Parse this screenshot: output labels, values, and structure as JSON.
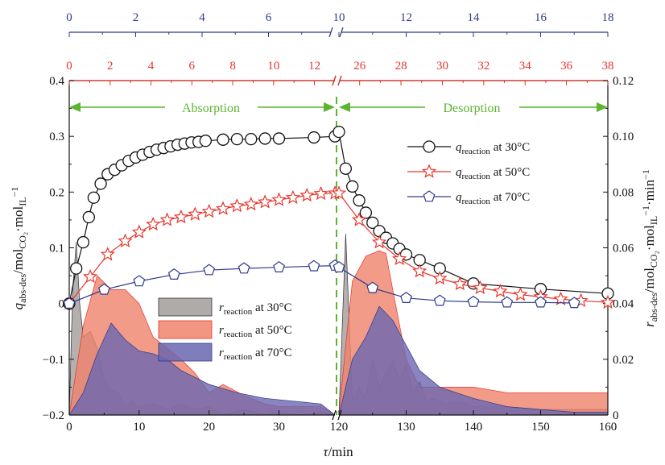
{
  "chart_data": {
    "type": "line",
    "title": "",
    "xlabel": "τ/min",
    "ylabel_left": "q_abs-des/mol_CO2·mol_IL^-1",
    "ylabel_right": "r_abs-des/mol_CO2·mol_IL^-1·min^-1",
    "ylabel_left_parts": {
      "q": "q",
      "sub1": "abs-des",
      "mid1": "/mol",
      "sub2": "CO₂",
      "mid2": "·mol",
      "sub3": "IL",
      "sup": "−1"
    },
    "ylabel_right_parts": {
      "r": "r",
      "sub1": "abs-des",
      "mid1": "/mol",
      "sub2": "CO₂",
      "mid2": "·mol",
      "sub3": "IL",
      "sup1": "−1",
      "mid3": "·min",
      "sup2": "−1"
    },
    "ylim_left": [
      -0.2,
      0.4
    ],
    "ylim_right": [
      0,
      0.12
    ],
    "yticks_left": [
      "−0.2",
      "−0.1",
      "0",
      "0.1",
      "0.2",
      "0.3",
      "0.4"
    ],
    "yticks_right": [
      "0",
      "0.02",
      "0.04",
      "0.06",
      "0.08",
      "0.10",
      "0.12"
    ],
    "x_ticks_bottom": [
      "0",
      "10",
      "20",
      "30",
      "120",
      "130",
      "140",
      "150",
      "160"
    ],
    "x_ticks_top_blue": [
      "0",
      "2",
      "4",
      "6",
      "10",
      "12",
      "14",
      "16",
      "18"
    ],
    "x_ticks_top_red": [
      "0",
      "2",
      "4",
      "6",
      "8",
      "10",
      "12",
      "26",
      "28",
      "30",
      "32",
      "34",
      "36",
      "38"
    ],
    "x_break": "axis break between 38 and 120 min (bottom), 8 and 10 (top blue), 13 and 25 (top red)",
    "phases": [
      {
        "label": "Absorption"
      },
      {
        "label": "Desorption"
      }
    ],
    "grid": false,
    "colors": {
      "black": "#111111",
      "red": "#e8342b",
      "blue": "#2d3a8c",
      "green": "#5cb531",
      "gray_fill": "#a09c9a",
      "red_fill": "#f0826b",
      "blue_fill": "#6a66b0"
    },
    "series": [
      {
        "name": "q_reaction at 30°C",
        "legend": {
          "sym": "q",
          "sub": "reaction",
          "text": " at 30°C"
        },
        "marker": "circle",
        "color": "#111111",
        "axis": "left",
        "x": [
          0,
          1,
          2,
          2.8,
          3.5,
          4.5,
          5.5,
          6.5,
          7.5,
          8.5,
          9.5,
          10.5,
          11.5,
          12.5,
          13.5,
          14.5,
          15.5,
          16.5,
          17.5,
          18.5,
          19.5,
          22,
          24,
          26,
          28,
          30,
          35,
          38,
          120,
          121,
          122,
          123,
          124,
          125,
          126,
          127,
          128,
          129,
          130,
          132,
          135,
          140,
          150,
          160
        ],
        "y": [
          0,
          0.063,
          0.11,
          0.155,
          0.19,
          0.215,
          0.232,
          0.24,
          0.248,
          0.256,
          0.262,
          0.267,
          0.272,
          0.276,
          0.279,
          0.282,
          0.285,
          0.287,
          0.289,
          0.29,
          0.292,
          0.294,
          0.295,
          0.295,
          0.296,
          0.296,
          0.298,
          0.3,
          0.308,
          0.242,
          0.21,
          0.185,
          0.163,
          0.145,
          0.13,
          0.118,
          0.108,
          0.098,
          0.088,
          0.078,
          0.063,
          0.036,
          0.026,
          0.018
        ]
      },
      {
        "name": "q_reaction at 50°C",
        "legend": {
          "sym": "q",
          "sub": "reaction",
          "text": " at 50°C"
        },
        "marker": "star",
        "color": "#e8342b",
        "axis": "left",
        "x": [
          0,
          3,
          5.5,
          8,
          10,
          12,
          14,
          16,
          18,
          20,
          22,
          24,
          26,
          28,
          30,
          32,
          34,
          36,
          38,
          120,
          123,
          126,
          129,
          132,
          135,
          138,
          141,
          144,
          147,
          150,
          153,
          156,
          160
        ],
        "y": [
          0,
          0.048,
          0.088,
          0.112,
          0.128,
          0.142,
          0.15,
          0.155,
          0.16,
          0.165,
          0.17,
          0.175,
          0.178,
          0.182,
          0.186,
          0.19,
          0.194,
          0.197,
          0.198,
          0.198,
          0.15,
          0.11,
          0.08,
          0.058,
          0.045,
          0.035,
          0.028,
          0.022,
          0.016,
          0.012,
          0.008,
          0.005,
          0.002
        ]
      },
      {
        "name": "q_reaction at 70°C",
        "legend": {
          "sym": "q",
          "sub": "reaction",
          "text": " at 70°C"
        },
        "marker": "pentagon",
        "color": "#2d3a8c",
        "axis": "left",
        "x": [
          0,
          5,
          10,
          15,
          20,
          25,
          30,
          35,
          38,
          120,
          125,
          130,
          135,
          140,
          145,
          150,
          155
        ],
        "y": [
          0,
          0.025,
          0.04,
          0.052,
          0.06,
          0.063,
          0.065,
          0.067,
          0.068,
          0.065,
          0.028,
          0.01,
          0.005,
          0.003,
          0.002,
          0.002,
          0.001
        ]
      },
      {
        "name": "r_reaction at 30°C",
        "legend": {
          "sym": "r",
          "sub": "reaction",
          "text": " at 30°C"
        },
        "type": "area",
        "color": "#a09c9a",
        "axis": "right",
        "x": [
          0,
          0.5,
          1,
          1.5,
          2,
          3,
          4,
          5,
          6,
          7,
          8,
          9,
          10,
          12,
          14,
          16,
          18,
          20,
          22,
          25,
          28,
          30,
          33,
          36,
          38,
          120,
          121,
          122,
          123,
          124,
          125,
          126,
          127,
          128,
          129,
          130,
          131,
          132,
          133,
          134,
          136,
          138,
          140,
          145,
          150,
          155,
          160
        ],
        "y": [
          0,
          0.045,
          0.062,
          0.04,
          0.028,
          0.03,
          0.024,
          0.013,
          0.009,
          0.008,
          0.003,
          0.005,
          0.003,
          0.004,
          0.002,
          0.004,
          0.002,
          0.003,
          0.0,
          0.002,
          0.0,
          0.001,
          0.0,
          0.001,
          0.0,
          0.0,
          0.065,
          0.005,
          0.01,
          0.006,
          0.02,
          0.01,
          0.015,
          0.02,
          0.012,
          0.018,
          0.008,
          0.012,
          0.005,
          0.006,
          0.004,
          0.005,
          0.003,
          0.003,
          0.002,
          0.002,
          0.002
        ]
      },
      {
        "name": "r_reaction at 50°C",
        "legend": {
          "sym": "r",
          "sub": "reaction",
          "text": " at 50°C"
        },
        "type": "area",
        "color": "#f0826b",
        "axis": "right",
        "x": [
          0,
          2,
          4,
          6,
          8,
          10,
          12,
          14,
          16,
          18,
          20,
          22,
          25,
          28,
          30,
          33,
          36,
          38,
          120,
          121,
          122,
          124,
          126,
          127,
          128,
          130,
          132,
          135,
          140,
          145,
          150,
          155,
          160
        ],
        "y": [
          0,
          0.032,
          0.05,
          0.045,
          0.045,
          0.04,
          0.028,
          0.024,
          0.02,
          0.015,
          0.008,
          0.011,
          0.007,
          0.004,
          0.003,
          0.003,
          0.003,
          0.0,
          0.0,
          0.025,
          0.048,
          0.057,
          0.059,
          0.058,
          0.045,
          0.02,
          0.01,
          0.01,
          0.01,
          0.008,
          0.008,
          0.008,
          0.008
        ]
      },
      {
        "name": "r_reaction at 70°C",
        "legend": {
          "sym": "r",
          "sub": "reaction",
          "text": " at 70°C"
        },
        "type": "area",
        "color": "#6a66b0",
        "axis": "right",
        "x": [
          0,
          2,
          4,
          6,
          8,
          10,
          12,
          14,
          16,
          20,
          24,
          28,
          32,
          36,
          38,
          120,
          122,
          124,
          126,
          128,
          130,
          132,
          135,
          140,
          145,
          150,
          155,
          160
        ],
        "y": [
          0,
          0.008,
          0.022,
          0.033,
          0.027,
          0.023,
          0.022,
          0.02,
          0.016,
          0.011,
          0.008,
          0.006,
          0.005,
          0.004,
          0.0,
          0.0,
          0.02,
          0.028,
          0.039,
          0.034,
          0.025,
          0.016,
          0.01,
          0.006,
          0.003,
          0.002,
          0.001,
          0.001
        ]
      }
    ]
  }
}
